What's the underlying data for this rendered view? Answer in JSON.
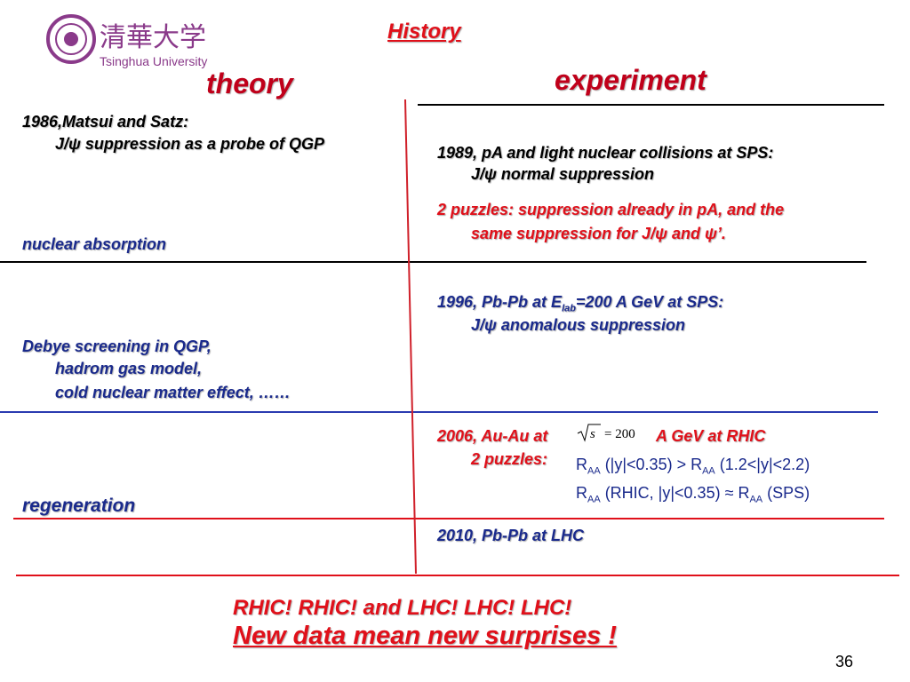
{
  "header": {
    "title": "History",
    "logo_text": "清華大学",
    "logo_subtitle": "Tsinghua University"
  },
  "columns": {
    "theory": "theory",
    "experiment": "experiment"
  },
  "theory": {
    "matsui": [
      "1986,Matsui and Satz:",
      "J/ψ suppression as a probe of QGP"
    ],
    "absorption": "nuclear absorption",
    "debye": [
      "Debye screening in QGP,",
      "hadrom gas model,",
      "cold nuclear matter effect, ……"
    ],
    "regeneration": "regeneration"
  },
  "experiment": {
    "sps1989": [
      "1989, pA and light nuclear collisions at SPS:",
      "J/ψ normal suppression"
    ],
    "puzzles1989": [
      "2 puzzles:  suppression already in pA, and the",
      "same suppression for J/ψ and ψ’."
    ],
    "sps1996": {
      "line1": [
        "1996, Pb-Pb at E",
        "lab",
        "=200 A GeV at SPS:"
      ],
      "line2": "J/ψ anomalous suppression"
    },
    "rhic2006": {
      "prefix": "2006, Au-Au at",
      "sqrt_arg": "s",
      "sqrt_value": "= 200",
      "suffix": "A GeV at RHIC",
      "puzzles": "2 puzzles:",
      "raa1": [
        "R",
        "AA",
        " (|y|<0.35) > R",
        "AA",
        " (1.2<|y|<2.2)"
      ],
      "raa2": [
        "R",
        "AA",
        " (RHIC, |y|<0.35) ≈ R",
        "AA",
        " (SPS)"
      ]
    },
    "lhc2010": "2010, Pb-Pb at LHC"
  },
  "footer": {
    "line1": "RHIC! RHIC! and LHC! LHC! LHC!",
    "line2": "New data mean new surprises !"
  },
  "page_number": "36"
}
